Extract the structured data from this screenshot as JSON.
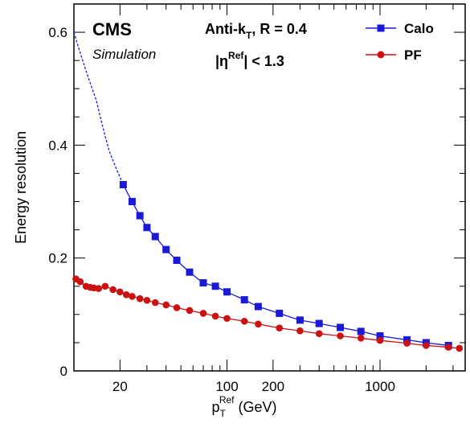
{
  "chart_data": {
    "type": "line",
    "xlabel": "p_T^Ref (GeV)",
    "xlabel_parts": {
      "main": "p",
      "sub": "T",
      "sup": "Ref",
      "unit": " (GeV)"
    },
    "ylabel": "Energy resolution",
    "xscale": "log",
    "xlim": [
      10,
      3600
    ],
    "ylim": [
      0,
      0.65
    ],
    "xticks": [
      {
        "value": 20,
        "label": "20"
      },
      {
        "value": 100,
        "label": "100"
      },
      {
        "value": 200,
        "label": "200"
      },
      {
        "value": 1000,
        "label": "1000"
      }
    ],
    "yticks": [
      {
        "value": 0,
        "label": "0"
      },
      {
        "value": 0.2,
        "label": "0.2"
      },
      {
        "value": 0.4,
        "label": "0.4"
      },
      {
        "value": 0.6,
        "label": "0.6"
      }
    ],
    "grid": false,
    "legend_position": "top-right",
    "colors": {
      "calo": "#1a1ad6",
      "pf": "#cc1111"
    },
    "annotations": {
      "cms": "CMS",
      "simulation": "Simulation",
      "algo": {
        "text": "Anti-k",
        "sub": "T",
        "rest": ", R = 0.4"
      },
      "eta": {
        "pre": "|η",
        "sup": "Ref",
        "post": "| < 1.3"
      }
    },
    "series": [
      {
        "name": "Calo",
        "marker": "square",
        "x": [
          21,
          24,
          27,
          30,
          34,
          40,
          47,
          57,
          70,
          84,
          100,
          130,
          160,
          220,
          300,
          400,
          550,
          750,
          1000,
          1500,
          2000,
          2800
        ],
        "y": [
          0.33,
          0.3,
          0.275,
          0.254,
          0.238,
          0.215,
          0.196,
          0.175,
          0.156,
          0.15,
          0.14,
          0.126,
          0.114,
          0.102,
          0.09,
          0.084,
          0.077,
          0.07,
          0.062,
          0.055,
          0.05,
          0.045
        ],
        "fit_extrapolation": {
          "x_from": 10,
          "y_at_x_from": 0.6
        }
      },
      {
        "name": "PF",
        "marker": "circle",
        "x": [
          10.3,
          11,
          12,
          12.8,
          13.5,
          14.5,
          16,
          18,
          20,
          22,
          24,
          27,
          30,
          34,
          40,
          47,
          57,
          70,
          84,
          100,
          130,
          160,
          220,
          300,
          400,
          550,
          750,
          1000,
          1500,
          2000,
          2800,
          3300
        ],
        "y": [
          0.163,
          0.158,
          0.15,
          0.148,
          0.147,
          0.146,
          0.15,
          0.144,
          0.14,
          0.135,
          0.132,
          0.128,
          0.125,
          0.121,
          0.117,
          0.112,
          0.107,
          0.102,
          0.097,
          0.093,
          0.088,
          0.083,
          0.076,
          0.071,
          0.066,
          0.062,
          0.058,
          0.054,
          0.049,
          0.045,
          0.042,
          0.04
        ]
      }
    ]
  }
}
